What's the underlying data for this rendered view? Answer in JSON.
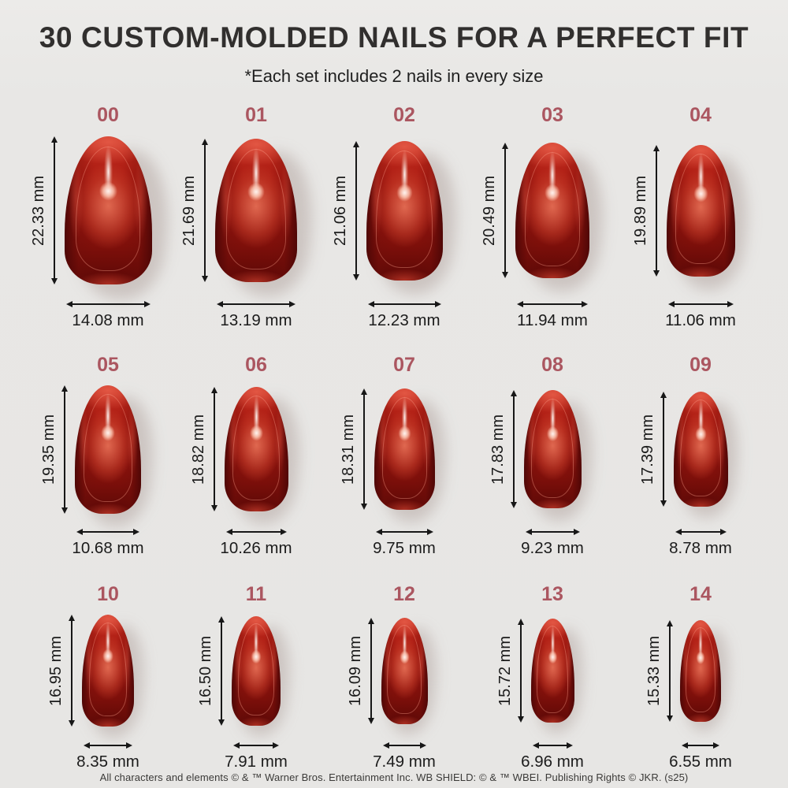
{
  "header": {
    "title": "30 CUSTOM-MOLDED NAILS FOR A PERFECT FIT",
    "subtitle": "*Each set includes 2 nails in every size"
  },
  "unit": "mm",
  "sizes": [
    {
      "id": "00",
      "length_mm": "22.33",
      "width_mm": "14.08"
    },
    {
      "id": "01",
      "length_mm": "21.69",
      "width_mm": "13.19"
    },
    {
      "id": "02",
      "length_mm": "21.06",
      "width_mm": "12.23"
    },
    {
      "id": "03",
      "length_mm": "20.49",
      "width_mm": "11.94"
    },
    {
      "id": "04",
      "length_mm": "19.89",
      "width_mm": "11.06"
    },
    {
      "id": "05",
      "length_mm": "19.35",
      "width_mm": "10.68"
    },
    {
      "id": "06",
      "length_mm": "18.82",
      "width_mm": "10.26"
    },
    {
      "id": "07",
      "length_mm": "18.31",
      "width_mm": "9.75"
    },
    {
      "id": "08",
      "length_mm": "17.83",
      "width_mm": "9.23"
    },
    {
      "id": "09",
      "length_mm": "17.39",
      "width_mm": "8.78"
    },
    {
      "id": "10",
      "length_mm": "16.95",
      "width_mm": "8.35"
    },
    {
      "id": "11",
      "length_mm": "16.50",
      "width_mm": "7.91"
    },
    {
      "id": "12",
      "length_mm": "16.09",
      "width_mm": "7.49"
    },
    {
      "id": "13",
      "length_mm": "15.72",
      "width_mm": "6.96"
    },
    {
      "id": "14",
      "length_mm": "15.33",
      "width_mm": "6.55"
    }
  ],
  "footer": {
    "disclaimer": "All characters and elements © & ™ Warner Bros. Entertainment Inc. WB SHIELD: © & ™ WBEI. Publishing Rights © JKR. (s25)"
  },
  "colors": {
    "background": "#e8e7e5",
    "title_text": "#312f2e",
    "size_label": "#ab5660",
    "measure_text": "#1b1b1b",
    "nail_chrome_red": "#a81a12",
    "nail_dark_edge": "#4f0706",
    "nail_highlight": "#ffd2bd"
  }
}
